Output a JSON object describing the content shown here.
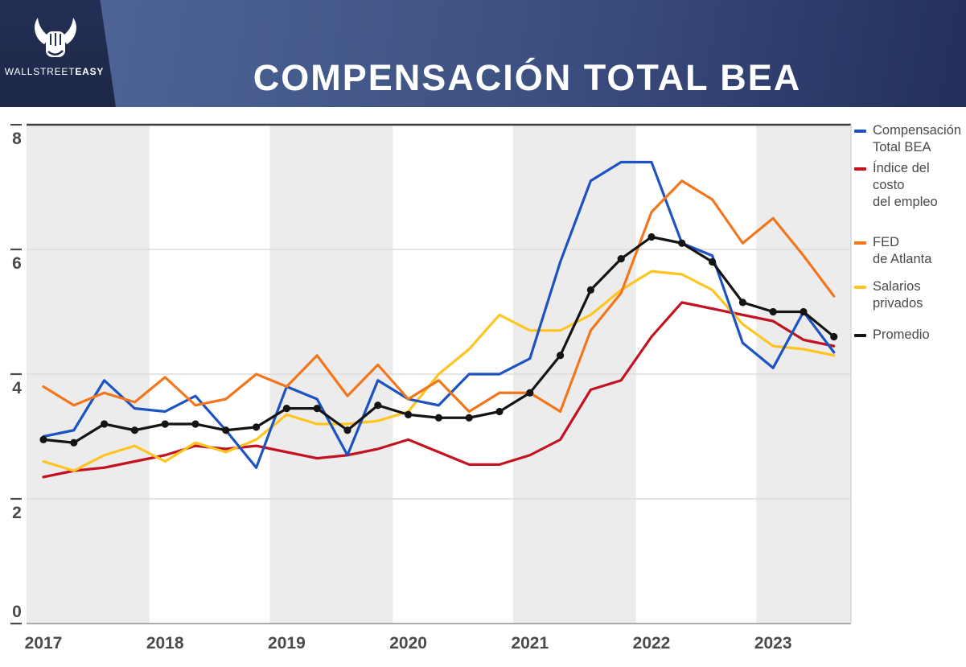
{
  "header": {
    "title": "COMPENSACIÓN TOTAL BEA",
    "brand": {
      "wordmark_light": "WALLSTREET",
      "wordmark_bold": "EASY",
      "icon": "bull-fist-logo"
    },
    "colors": {
      "panel_navy": "#222E52",
      "band_left": "#52699B",
      "band_right": "#232F5C"
    }
  },
  "legend": {
    "position": "right",
    "items": [
      {
        "line1": "Compensación",
        "line2": "Total BEA",
        "color": "#1C52C2",
        "gap_before": 0
      },
      {
        "line1": "Índice del costo",
        "line2": "del empleo",
        "color": "#C41320",
        "gap_before": 5
      },
      {
        "line1": "FED",
        "line2": "de Atlanta",
        "color": "#F2761B",
        "gap_before": 29
      },
      {
        "line1": "Salarios",
        "line2": "privados",
        "color": "#FFC41F",
        "gap_before": 13
      },
      {
        "line1": "Promedio",
        "line2": "",
        "color": "#141414",
        "gap_before": 18
      }
    ]
  },
  "chart_data": {
    "type": "line",
    "title": "Compensación Total BEA",
    "xlabel": "",
    "ylabel": "",
    "ylim": [
      0,
      8
    ],
    "yticks": [
      0,
      2,
      4,
      6,
      8
    ],
    "grid": "horizontal",
    "year_ticks": [
      "2017",
      "2018",
      "2019",
      "2020",
      "2021",
      "2022",
      "2023"
    ],
    "shaded_years": [
      "2017",
      "2019",
      "2021",
      "2023"
    ],
    "quarters": [
      "2017-Q1",
      "2017-Q2",
      "2017-Q3",
      "2017-Q4",
      "2018-Q1",
      "2018-Q2",
      "2018-Q3",
      "2018-Q4",
      "2019-Q1",
      "2019-Q2",
      "2019-Q3",
      "2019-Q4",
      "2020-Q1",
      "2020-Q2",
      "2020-Q3",
      "2020-Q4",
      "2021-Q1",
      "2021-Q2",
      "2021-Q3",
      "2021-Q4",
      "2022-Q1",
      "2022-Q2",
      "2022-Q3",
      "2022-Q4",
      "2023-Q1",
      "2023-Q2",
      "2023-Q3"
    ],
    "series": [
      {
        "name": "Índice del costo del empleo",
        "color": "#C41320",
        "markers": false,
        "values": [
          2.35,
          2.45,
          2.5,
          2.6,
          2.7,
          2.85,
          2.8,
          2.85,
          2.75,
          2.65,
          2.7,
          2.8,
          2.95,
          2.75,
          2.55,
          2.55,
          2.7,
          2.95,
          3.75,
          3.9,
          4.6,
          5.15,
          5.05,
          4.95,
          4.85,
          4.55,
          4.45
        ]
      },
      {
        "name": "Salarios privados",
        "color": "#FFC41F",
        "markers": false,
        "values": [
          2.6,
          2.45,
          2.7,
          2.85,
          2.6,
          2.9,
          2.75,
          2.95,
          3.35,
          3.2,
          3.2,
          3.25,
          3.4,
          4.0,
          4.4,
          4.95,
          4.7,
          4.7,
          4.95,
          5.35,
          5.65,
          5.6,
          5.35,
          4.8,
          4.45,
          4.4,
          4.3
        ]
      },
      {
        "name": "Compensación Total BEA",
        "color": "#1C52C2",
        "markers": false,
        "values": [
          3.0,
          3.1,
          3.9,
          3.45,
          3.4,
          3.65,
          3.1,
          2.5,
          3.8,
          3.6,
          2.7,
          3.9,
          3.6,
          3.5,
          4.0,
          4.0,
          4.25,
          5.8,
          7.1,
          7.4,
          7.4,
          6.1,
          5.9,
          4.5,
          4.1,
          5.0,
          4.35
        ]
      },
      {
        "name": "FED de Atlanta",
        "color": "#F2761B",
        "markers": false,
        "values": [
          3.8,
          3.5,
          3.7,
          3.55,
          3.95,
          3.5,
          3.6,
          4.0,
          3.8,
          4.3,
          3.65,
          4.15,
          3.6,
          3.9,
          3.4,
          3.7,
          3.7,
          3.4,
          4.7,
          5.3,
          6.6,
          7.1,
          6.8,
          6.1,
          6.5,
          5.9,
          5.25
        ]
      },
      {
        "name": "Promedio",
        "color": "#141414",
        "markers": true,
        "values": [
          2.95,
          2.9,
          3.2,
          3.1,
          3.2,
          3.2,
          3.1,
          3.15,
          3.45,
          3.45,
          3.1,
          3.5,
          3.35,
          3.3,
          3.3,
          3.4,
          3.7,
          4.3,
          5.35,
          5.85,
          6.2,
          6.1,
          5.8,
          5.15,
          5.0,
          5.0,
          4.6
        ]
      }
    ],
    "style": {
      "band_fill": "#ececec",
      "gridline_color": "#dcdcdc",
      "top_border_color": "#3c3c3c",
      "axis_color": "#ababab",
      "tick_label_color": "#4a4a4a"
    }
  }
}
